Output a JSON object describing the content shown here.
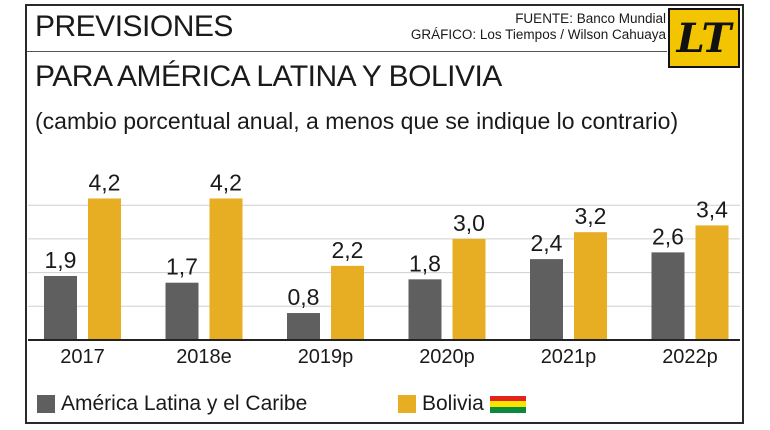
{
  "header": {
    "title": "PREVISIONES",
    "source_line1": "FUENTE: Banco Mundial",
    "source_line2": "GRÁFICO: Los Tiempos / Wilson Cahuaya",
    "logo_text": "LT",
    "subtitle": "PARA AMÉRICA LATINA Y BOLIVIA",
    "note": "(cambio porcentual anual, a menos que se indique lo contrario)"
  },
  "colors": {
    "latam": "#5f5f5f",
    "bolivia": "#e8ae23",
    "flag_red": "#e2241b",
    "flag_yellow": "#f9e300",
    "flag_green": "#0a8a3a"
  },
  "chart_data": {
    "type": "bar",
    "categories": [
      "2017",
      "2018e",
      "2019p",
      "2020p",
      "2021p",
      "2022p"
    ],
    "series": [
      {
        "name": "América Latina y el Caribe",
        "values": [
          1.9,
          1.7,
          0.8,
          1.8,
          2.4,
          2.6
        ],
        "labels": [
          "1,9",
          "1,7",
          "0,8",
          "1,8",
          "2,4",
          "2,6"
        ]
      },
      {
        "name": "Bolivia",
        "values": [
          4.2,
          4.2,
          2.2,
          3.0,
          3.2,
          3.4
        ],
        "labels": [
          "4,2",
          "4,2",
          "2,2",
          "3,0",
          "3,2",
          "3,4"
        ]
      }
    ],
    "ylim": [
      0,
      4.4
    ],
    "grid": true,
    "legend_position": "bottom-left"
  }
}
